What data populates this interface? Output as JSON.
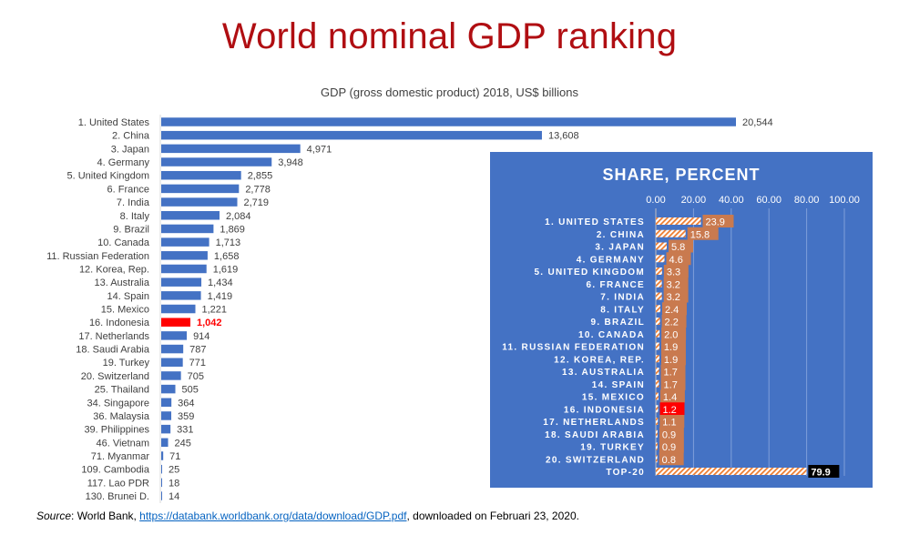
{
  "title": "World nominal GDP ranking",
  "source": {
    "label": "Source",
    "text_before": ": World Bank, ",
    "link": "https://databank.worldbank.org/data/download/GDP.pdf",
    "text_after": ", downloaded on Februari 23, 2020."
  },
  "colors": {
    "title": "#B00E12",
    "bar": "#4472C4",
    "highlight": "#FF0000",
    "inset_bg": "#4472C4",
    "inset_label_box": "#C97A4F",
    "hatch": "#ED7D31",
    "total_label_box": "#000000"
  },
  "chart_data": [
    {
      "type": "bar",
      "orientation": "horizontal",
      "title": "GDP (gross domestic product) 2018, US$ billions",
      "xlabel": "",
      "ylabel": "",
      "grid": false,
      "highlight": "16. Indonesia",
      "categories": [
        "1. United States",
        "2. China",
        "3. Japan",
        "4. Germany",
        "5. United Kingdom",
        "6. France",
        "7. India",
        "8. Italy",
        "9. Brazil",
        "10. Canada",
        "11. Russian Federation",
        "12. Korea, Rep.",
        "13. Australia",
        "14. Spain",
        "15. Mexico",
        "16. Indonesia",
        "17. Netherlands",
        "18. Saudi Arabia",
        "19. Turkey",
        "20. Switzerland",
        "25. Thailand",
        "34. Singapore",
        "36. Malaysia",
        "39. Philippines",
        "46. Vietnam",
        "71. Myanmar",
        "109. Cambodia",
        "117. Lao PDR",
        "130. Brunei D."
      ],
      "values": [
        20544,
        13608,
        4971,
        3948,
        2855,
        2778,
        2719,
        2084,
        1869,
        1713,
        1658,
        1619,
        1434,
        1419,
        1221,
        1042,
        914,
        787,
        771,
        705,
        505,
        364,
        359,
        331,
        245,
        71,
        25,
        18,
        14
      ],
      "value_labels": [
        "20,544",
        "13,608",
        "4,971",
        "3,948",
        "2,855",
        "2,778",
        "2,719",
        "2,084",
        "1,869",
        "1,713",
        "1,658",
        "1,619",
        "1,434",
        "1,419",
        "1,221",
        "1,042",
        "914",
        "787",
        "771",
        "705",
        "505",
        "364",
        "359",
        "331",
        "245",
        "71",
        "25",
        "18",
        "14"
      ]
    },
    {
      "type": "bar",
      "orientation": "horizontal",
      "title": "SHARE, PERCENT",
      "xlim": [
        0,
        100
      ],
      "xticks": [
        "0.00",
        "20.00",
        "40.00",
        "60.00",
        "80.00",
        "100.00"
      ],
      "grid": true,
      "highlight": "16. INDONESIA",
      "categories": [
        "1. UNITED STATES",
        "2. CHINA",
        "3. JAPAN",
        "4. GERMANY",
        "5. UNITED KINGDOM",
        "6. FRANCE",
        "7. INDIA",
        "8. ITALY",
        "9. BRAZIL",
        "10. CANADA",
        "11. RUSSIAN FEDERATION",
        "12. KOREA, REP.",
        "13. AUSTRALIA",
        "14. SPAIN",
        "15. MEXICO",
        "16. INDONESIA",
        "17. NETHERLANDS",
        "18. SAUDI ARABIA",
        "19. TURKEY",
        "20. SWITZERLAND",
        "TOP-20"
      ],
      "values": [
        23.9,
        15.8,
        5.8,
        4.6,
        3.3,
        3.2,
        3.2,
        2.4,
        2.2,
        2.0,
        1.9,
        1.9,
        1.7,
        1.7,
        1.4,
        1.2,
        1.1,
        0.9,
        0.9,
        0.8,
        79.9
      ],
      "value_labels": [
        "23.9",
        "15.8",
        "5.8",
        "4.6",
        "3.3",
        "3.2",
        "3.2",
        "2.4",
        "2.2",
        "2.0",
        "1.9",
        "1.9",
        "1.7",
        "1.7",
        "1.4",
        "1.2",
        "1.1",
        "0.9",
        "0.9",
        "0.8",
        "79.9"
      ]
    }
  ]
}
